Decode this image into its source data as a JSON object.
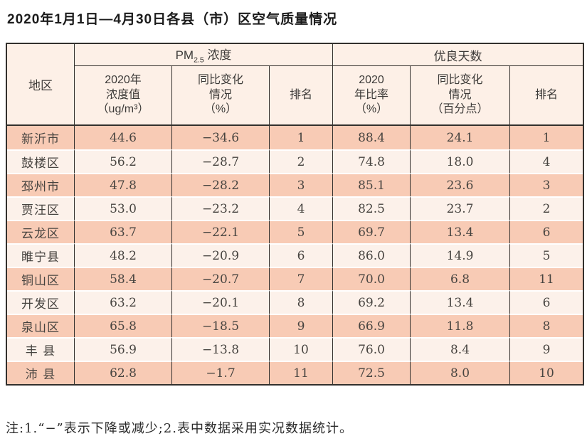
{
  "title": "2020年1月1日—4月30日各县（市）区空气质量情况",
  "note": "注:1.“−”表示下降或减少;2.表中数据采用实况数据统计。",
  "colors": {
    "row_odd": "#f8cbb5",
    "row_even": "#fcf1ea",
    "header_bg": "#fdf0e7",
    "grid_border": "#33302d"
  },
  "table": {
    "region_header": "地区",
    "group_pm": {
      "prefix": "PM",
      "sub": "2.5",
      "suffix": " 浓度"
    },
    "group_good": "优良天数",
    "subheaders": {
      "pm_value": "2020年\n浓度值\n（ug/m³）",
      "pm_change": "同比变化\n情况\n（%）",
      "pm_rank": "排名",
      "good_rate": "2020\n年比率\n（%）",
      "good_change": "同比变化\n情况\n（百分点）",
      "good_rank": "排名"
    },
    "columns": [
      "region",
      "pm_value",
      "pm_change",
      "pm_rank",
      "good_rate",
      "good_change",
      "good_rank"
    ],
    "rows": [
      {
        "region": "新沂市",
        "pm_value": "44.6",
        "pm_change": "−34.6",
        "pm_rank": "1",
        "good_rate": "88.4",
        "good_change": "24.1",
        "good_rank": "1"
      },
      {
        "region": "鼓楼区",
        "pm_value": "56.2",
        "pm_change": "−28.7",
        "pm_rank": "2",
        "good_rate": "74.8",
        "good_change": "18.0",
        "good_rank": "4"
      },
      {
        "region": "邳州市",
        "pm_value": "47.8",
        "pm_change": "−28.2",
        "pm_rank": "3",
        "good_rate": "85.1",
        "good_change": "23.6",
        "good_rank": "3"
      },
      {
        "region": "贾汪区",
        "pm_value": "53.0",
        "pm_change": "−23.2",
        "pm_rank": "4",
        "good_rate": "82.5",
        "good_change": "23.7",
        "good_rank": "2"
      },
      {
        "region": "云龙区",
        "pm_value": "63.7",
        "pm_change": "−22.1",
        "pm_rank": "5",
        "good_rate": "69.7",
        "good_change": "13.4",
        "good_rank": "6"
      },
      {
        "region": "睢宁县",
        "pm_value": "48.2",
        "pm_change": "−20.9",
        "pm_rank": "6",
        "good_rate": "86.0",
        "good_change": "14.9",
        "good_rank": "5"
      },
      {
        "region": "铜山区",
        "pm_value": "58.4",
        "pm_change": "−20.7",
        "pm_rank": "7",
        "good_rate": "70.0",
        "good_change": "6.8",
        "good_rank": "11"
      },
      {
        "region": "开发区",
        "pm_value": "63.2",
        "pm_change": "−20.1",
        "pm_rank": "8",
        "good_rate": "69.2",
        "good_change": "13.4",
        "good_rank": "6"
      },
      {
        "region": "泉山区",
        "pm_value": "65.8",
        "pm_change": "−18.5",
        "pm_rank": "9",
        "good_rate": "66.9",
        "good_change": "11.8",
        "good_rank": "8"
      },
      {
        "region": "丰 县",
        "pm_value": "56.9",
        "pm_change": "−13.8",
        "pm_rank": "10",
        "good_rate": "76.0",
        "good_change": "8.4",
        "good_rank": "9"
      },
      {
        "region": "沛 县",
        "pm_value": "62.8",
        "pm_change": "−1.7",
        "pm_rank": "11",
        "good_rate": "72.5",
        "good_change": "8.0",
        "good_rank": "10"
      }
    ]
  }
}
